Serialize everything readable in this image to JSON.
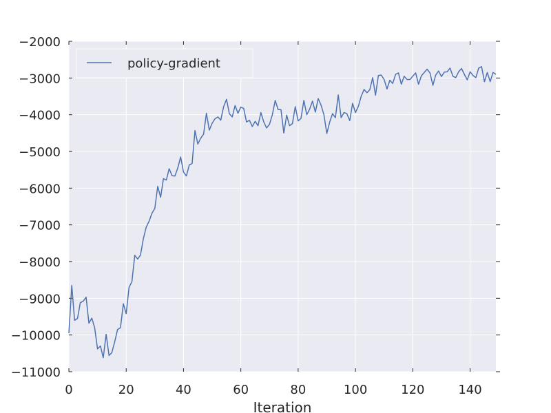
{
  "chart_data": {
    "type": "line",
    "title": "",
    "xlabel": "Iteration",
    "ylabel": "",
    "xlim": [
      0,
      149
    ],
    "ylim": [
      -11000,
      -2000
    ],
    "xticks": [
      0,
      20,
      40,
      60,
      80,
      100,
      120,
      140
    ],
    "yticks": [
      -2000,
      -3000,
      -4000,
      -5000,
      -6000,
      -7000,
      -8000,
      -9000,
      -10000,
      -11000
    ],
    "grid": true,
    "legend_position": "top-left",
    "colors": {
      "background": "#eaeaf2",
      "grid": "#ffffff",
      "line": "#4c72b0",
      "text": "#262626"
    },
    "series": [
      {
        "name": "policy-gradient",
        "x": [
          0,
          1,
          2,
          3,
          4,
          5,
          6,
          7,
          8,
          9,
          10,
          11,
          12,
          13,
          14,
          15,
          16,
          17,
          18,
          19,
          20,
          21,
          22,
          23,
          24,
          25,
          26,
          27,
          28,
          29,
          30,
          31,
          32,
          33,
          34,
          35,
          36,
          37,
          38,
          39,
          40,
          41,
          42,
          43,
          44,
          45,
          46,
          47,
          48,
          49,
          50,
          51,
          52,
          53,
          54,
          55,
          56,
          57,
          58,
          59,
          60,
          61,
          62,
          63,
          64,
          65,
          66,
          67,
          68,
          69,
          70,
          71,
          72,
          73,
          74,
          75,
          76,
          77,
          78,
          79,
          80,
          81,
          82,
          83,
          84,
          85,
          86,
          87,
          88,
          89,
          90,
          91,
          92,
          93,
          94,
          95,
          96,
          97,
          98,
          99,
          100,
          101,
          102,
          103,
          104,
          105,
          106,
          107,
          108,
          109,
          110,
          111,
          112,
          113,
          114,
          115,
          116,
          117,
          118,
          119,
          120,
          121,
          122,
          123,
          124,
          125,
          126,
          127,
          128,
          129,
          130,
          131,
          132,
          133,
          134,
          135,
          136,
          137,
          138,
          139,
          140,
          141,
          142,
          143,
          144,
          145,
          146,
          147,
          148,
          149
        ],
        "y": [
          -9950,
          -8650,
          -9600,
          -9550,
          -9120,
          -9080,
          -8970,
          -9680,
          -9540,
          -9800,
          -10380,
          -10300,
          -10620,
          -9980,
          -10560,
          -10480,
          -10180,
          -9850,
          -9800,
          -9150,
          -9420,
          -8700,
          -8550,
          -7830,
          -7930,
          -7820,
          -7370,
          -7060,
          -6900,
          -6680,
          -6550,
          -5950,
          -6250,
          -5740,
          -5780,
          -5470,
          -5660,
          -5670,
          -5450,
          -5150,
          -5560,
          -5670,
          -5370,
          -5330,
          -4430,
          -4800,
          -4640,
          -4530,
          -3960,
          -4420,
          -4230,
          -4110,
          -4060,
          -4150,
          -3780,
          -3580,
          -3970,
          -4060,
          -3750,
          -3960,
          -3790,
          -3830,
          -4200,
          -4150,
          -4320,
          -4180,
          -4300,
          -3940,
          -4200,
          -4360,
          -4260,
          -4000,
          -3610,
          -3860,
          -3860,
          -4500,
          -4010,
          -4300,
          -4240,
          -3780,
          -4170,
          -4100,
          -3610,
          -4000,
          -3850,
          -3630,
          -3930,
          -3560,
          -3740,
          -4000,
          -4510,
          -4200,
          -3970,
          -4080,
          -3460,
          -4080,
          -3940,
          -3970,
          -4160,
          -3690,
          -3940,
          -3770,
          -3500,
          -3310,
          -3400,
          -3320,
          -2990,
          -3470,
          -2930,
          -2920,
          -3040,
          -3300,
          -3060,
          -3150,
          -2900,
          -2860,
          -3170,
          -2950,
          -3040,
          -3040,
          -2950,
          -2860,
          -3170,
          -2940,
          -2850,
          -2760,
          -2860,
          -3200,
          -2920,
          -2810,
          -2960,
          -2840,
          -2830,
          -2730,
          -2950,
          -2990,
          -2830,
          -2740,
          -2900,
          -3050,
          -2830,
          -2930,
          -2990,
          -2730,
          -2690,
          -3100,
          -2850,
          -3100,
          -2850,
          -2900
        ]
      }
    ]
  }
}
